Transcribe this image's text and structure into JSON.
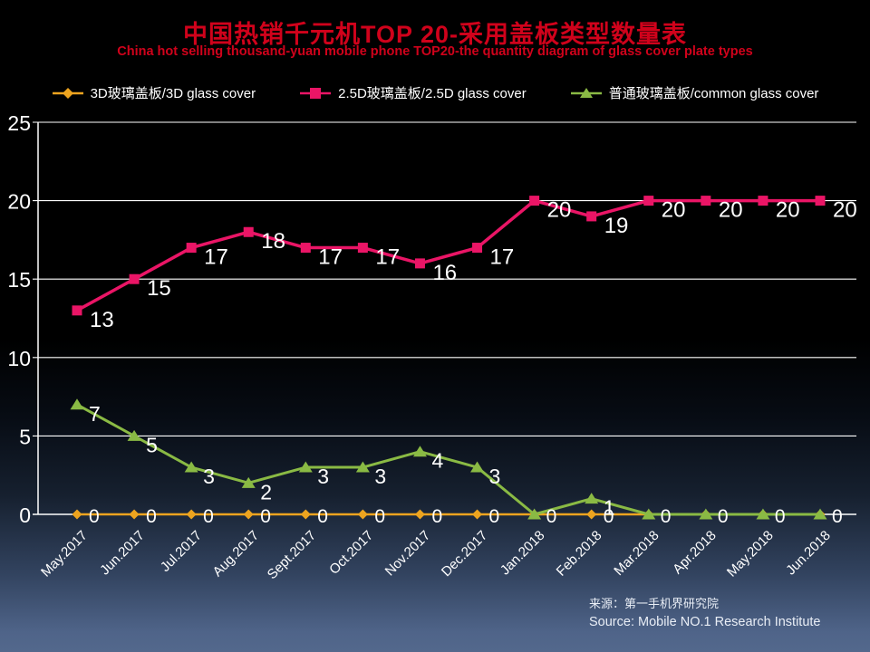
{
  "page": {
    "title": "中国热销千元机TOP 20-采用盖板类型数量表",
    "subtitle": "China hot selling thousand-yuan mobile phone TOP20-the quantity diagram of glass cover plate types",
    "title_color": "#d0021b"
  },
  "chart_data": {
    "type": "line",
    "categories": [
      "May.2017",
      "Jun.2017",
      "Jul.2017",
      "Aug.2017",
      "Sept.2017",
      "Oct.2017",
      "Nov.2017",
      "Dec.2017",
      "Jan.2018",
      "Feb.2018",
      "Mar.2018",
      "Apr.2018",
      "May.2018",
      "Jun.2018"
    ],
    "series": [
      {
        "name": "3D玻璃盖板/3D glass cover",
        "color": "#eda41f",
        "marker": "diamond",
        "values": [
          0,
          0,
          0,
          0,
          0,
          0,
          0,
          0,
          0,
          0,
          0,
          0,
          0,
          0
        ]
      },
      {
        "name": "2.5D玻璃盖板/2.5D glass cover",
        "color": "#ea1566",
        "marker": "square",
        "values": [
          13,
          15,
          17,
          18,
          17,
          17,
          16,
          17,
          20,
          19,
          20,
          20,
          20,
          20
        ]
      },
      {
        "name": "普通玻璃盖板/common glass cover",
        "color": "#8aba44",
        "marker": "triangle",
        "values": [
          7,
          5,
          3,
          2,
          3,
          3,
          4,
          3,
          0,
          1,
          0,
          0,
          0,
          0
        ]
      }
    ],
    "title": "中国热销千元机TOP 20-采用盖板类型数量表",
    "xlabel": "",
    "ylabel": "",
    "ylim": [
      0,
      25
    ],
    "yticks": [
      0,
      5,
      10,
      15,
      20,
      25
    ],
    "grid": true,
    "legend_position": "top",
    "axis_color": "#ffffff",
    "label_color": "#ffffff"
  },
  "source": {
    "line1": "来源：第一手机界研究院",
    "line2": "Source: Mobile NO.1 Research Institute"
  }
}
